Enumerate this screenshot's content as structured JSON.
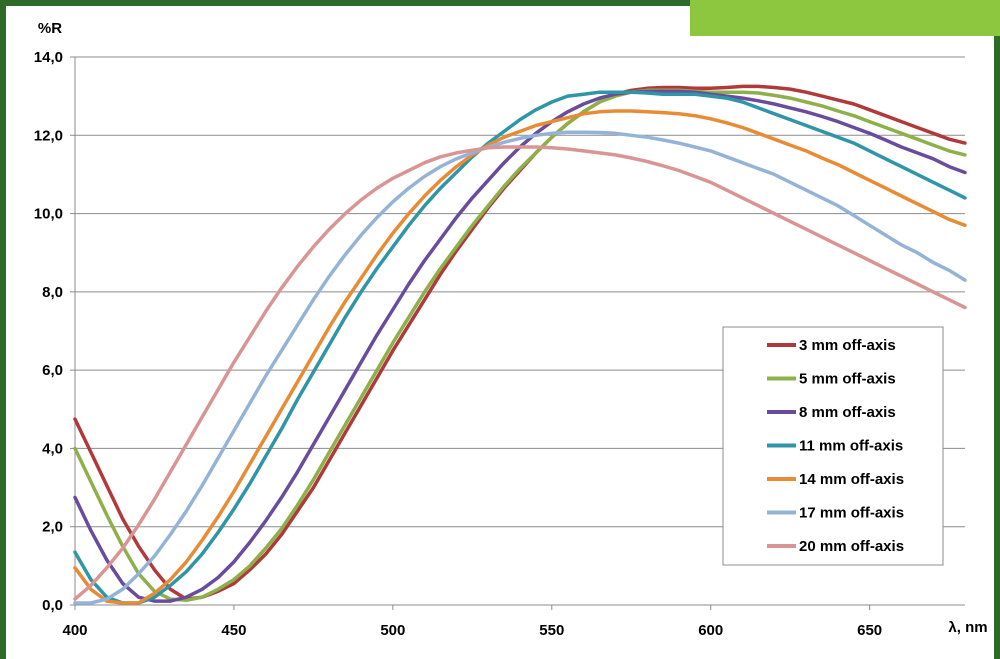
{
  "chart_data": {
    "type": "line",
    "title": "",
    "ylabel": "%R",
    "xlabel": "λ, nm",
    "xlim": [
      400,
      680
    ],
    "ylim": [
      0,
      14
    ],
    "x_ticks": [
      400,
      450,
      500,
      550,
      600,
      650
    ],
    "y_ticks": [
      "0,0",
      "2,0",
      "4,0",
      "6,0",
      "8,0",
      "10,0",
      "12,0",
      "14,0"
    ],
    "grid": "horizontal",
    "legend_position": "right",
    "x": [
      400,
      405,
      410,
      415,
      420,
      425,
      430,
      435,
      440,
      445,
      450,
      455,
      460,
      465,
      470,
      475,
      480,
      485,
      490,
      495,
      500,
      505,
      510,
      515,
      520,
      525,
      530,
      535,
      540,
      545,
      550,
      555,
      560,
      565,
      570,
      575,
      580,
      585,
      590,
      595,
      600,
      605,
      610,
      615,
      620,
      625,
      630,
      635,
      640,
      645,
      650,
      655,
      660,
      665,
      670,
      675,
      680
    ],
    "series": [
      {
        "name": "3 mm off-axis",
        "color": "#b03a3a",
        "values": [
          4.75,
          3.9,
          3.05,
          2.2,
          1.5,
          0.9,
          0.4,
          0.15,
          0.2,
          0.35,
          0.55,
          0.9,
          1.3,
          1.8,
          2.4,
          3.0,
          3.7,
          4.4,
          5.1,
          5.8,
          6.5,
          7.15,
          7.8,
          8.45,
          9.05,
          9.6,
          10.15,
          10.65,
          11.1,
          11.55,
          11.95,
          12.3,
          12.6,
          12.85,
          13.05,
          13.15,
          13.2,
          13.22,
          13.22,
          13.2,
          13.2,
          13.22,
          13.25,
          13.25,
          13.22,
          13.18,
          13.1,
          13.0,
          12.9,
          12.8,
          12.65,
          12.5,
          12.35,
          12.2,
          12.05,
          11.9,
          11.8
        ]
      },
      {
        "name": "5 mm off-axis",
        "color": "#8db04a",
        "values": [
          4.0,
          3.15,
          2.3,
          1.5,
          0.8,
          0.35,
          0.15,
          0.12,
          0.2,
          0.4,
          0.65,
          1.0,
          1.45,
          1.95,
          2.55,
          3.2,
          3.9,
          4.6,
          5.3,
          6.0,
          6.7,
          7.35,
          8.0,
          8.6,
          9.15,
          9.7,
          10.2,
          10.7,
          11.15,
          11.55,
          11.95,
          12.3,
          12.6,
          12.85,
          13.0,
          13.1,
          13.15,
          13.15,
          13.15,
          13.12,
          13.1,
          13.1,
          13.1,
          13.08,
          13.02,
          12.95,
          12.85,
          12.75,
          12.62,
          12.5,
          12.35,
          12.2,
          12.05,
          11.9,
          11.75,
          11.6,
          11.5
        ]
      },
      {
        "name": "8 mm off-axis",
        "color": "#6a4c9c",
        "values": [
          2.75,
          1.9,
          1.15,
          0.55,
          0.2,
          0.1,
          0.1,
          0.2,
          0.4,
          0.7,
          1.1,
          1.6,
          2.15,
          2.75,
          3.4,
          4.1,
          4.8,
          5.5,
          6.2,
          6.9,
          7.55,
          8.2,
          8.8,
          9.35,
          9.9,
          10.4,
          10.85,
          11.3,
          11.7,
          12.05,
          12.35,
          12.6,
          12.8,
          12.95,
          13.05,
          13.1,
          13.12,
          13.12,
          13.12,
          13.1,
          13.05,
          13.0,
          12.95,
          12.88,
          12.8,
          12.7,
          12.6,
          12.48,
          12.35,
          12.2,
          12.05,
          11.88,
          11.7,
          11.55,
          11.4,
          11.2,
          11.05
        ]
      },
      {
        "name": "11 mm off-axis",
        "color": "#2f95a8",
        "values": [
          1.35,
          0.65,
          0.2,
          0.05,
          0.05,
          0.2,
          0.5,
          0.85,
          1.3,
          1.85,
          2.45,
          3.1,
          3.8,
          4.5,
          5.25,
          5.95,
          6.65,
          7.35,
          8.0,
          8.6,
          9.15,
          9.7,
          10.2,
          10.65,
          11.05,
          11.45,
          11.8,
          12.1,
          12.4,
          12.65,
          12.85,
          13.0,
          13.05,
          13.1,
          13.1,
          13.1,
          13.08,
          13.05,
          13.05,
          13.05,
          13.0,
          12.95,
          12.85,
          12.7,
          12.55,
          12.4,
          12.25,
          12.1,
          11.95,
          11.8,
          11.6,
          11.4,
          11.2,
          11.0,
          10.8,
          10.6,
          10.4
        ]
      },
      {
        "name": "14 mm off-axis",
        "color": "#e88b35",
        "values": [
          0.95,
          0.4,
          0.1,
          0.05,
          0.05,
          0.3,
          0.65,
          1.1,
          1.65,
          2.25,
          2.9,
          3.6,
          4.3,
          5.0,
          5.7,
          6.4,
          7.1,
          7.75,
          8.35,
          8.95,
          9.5,
          10.0,
          10.45,
          10.85,
          11.2,
          11.5,
          11.75,
          11.95,
          12.1,
          12.25,
          12.35,
          12.45,
          12.55,
          12.6,
          12.62,
          12.62,
          12.6,
          12.58,
          12.55,
          12.5,
          12.42,
          12.32,
          12.2,
          12.05,
          11.9,
          11.75,
          11.6,
          11.42,
          11.25,
          11.05,
          10.85,
          10.65,
          10.45,
          10.25,
          10.05,
          9.85,
          9.7
        ]
      },
      {
        "name": "17 mm off-axis",
        "color": "#95b3d7",
        "values": [
          0.05,
          0.05,
          0.15,
          0.4,
          0.8,
          1.25,
          1.8,
          2.4,
          3.05,
          3.75,
          4.45,
          5.15,
          5.85,
          6.5,
          7.15,
          7.8,
          8.4,
          8.95,
          9.45,
          9.9,
          10.3,
          10.65,
          10.95,
          11.2,
          11.4,
          11.55,
          11.7,
          11.82,
          11.92,
          12.0,
          12.05,
          12.08,
          12.08,
          12.07,
          12.05,
          12.0,
          11.95,
          11.88,
          11.8,
          11.7,
          11.6,
          11.45,
          11.3,
          11.15,
          11.0,
          10.8,
          10.6,
          10.4,
          10.2,
          9.95,
          9.7,
          9.45,
          9.2,
          9.0,
          8.75,
          8.55,
          8.3
        ]
      },
      {
        "name": "20 mm off-axis",
        "color": "#d99594",
        "values": [
          0.15,
          0.5,
          0.95,
          1.45,
          2.05,
          2.7,
          3.4,
          4.1,
          4.8,
          5.5,
          6.2,
          6.85,
          7.5,
          8.1,
          8.65,
          9.15,
          9.6,
          10.0,
          10.35,
          10.65,
          10.9,
          11.1,
          11.3,
          11.45,
          11.55,
          11.62,
          11.68,
          11.7,
          11.7,
          11.7,
          11.68,
          11.65,
          11.6,
          11.55,
          11.5,
          11.42,
          11.33,
          11.22,
          11.1,
          10.95,
          10.8,
          10.6,
          10.4,
          10.2,
          10.0,
          9.8,
          9.6,
          9.4,
          9.2,
          9.0,
          8.8,
          8.6,
          8.4,
          8.2,
          8.0,
          7.8,
          7.6
        ]
      }
    ]
  }
}
